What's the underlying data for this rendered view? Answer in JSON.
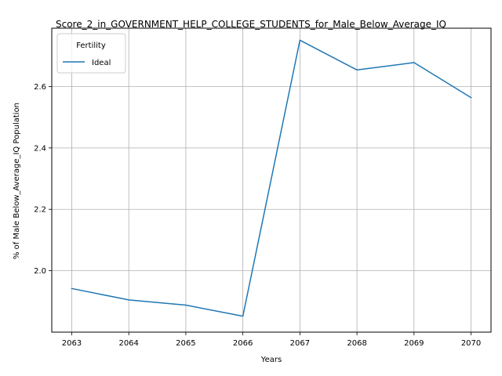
{
  "chart_data": {
    "type": "line",
    "title": "Score_2_in_GOVERNMENT_HELP_COLLEGE_STUDENTS_for_Male_Below_Average_IQ",
    "xlabel": "Years",
    "ylabel": "% of Male Below_Average_IQ Population",
    "x": [
      2063,
      2064,
      2065,
      2066,
      2067,
      2068,
      2069,
      2070
    ],
    "x_ticks": [
      "2063",
      "2064",
      "2065",
      "2066",
      "2067",
      "2068",
      "2069",
      "2070"
    ],
    "y_ticks": [
      "2.0",
      "2.2",
      "2.4",
      "2.6"
    ],
    "y_tick_values": [
      2.0,
      2.2,
      2.4,
      2.6
    ],
    "ylim": [
      1.8,
      2.79
    ],
    "xlim": [
      2062.65,
      2070.35
    ],
    "grid": true,
    "legend": {
      "title": "Fertility",
      "placement": "top-left"
    },
    "series": [
      {
        "name": "Ideal",
        "color": "#1f77b4",
        "values": [
          1.942,
          1.905,
          1.888,
          1.852,
          2.751,
          2.654,
          2.678,
          2.564
        ]
      }
    ]
  }
}
